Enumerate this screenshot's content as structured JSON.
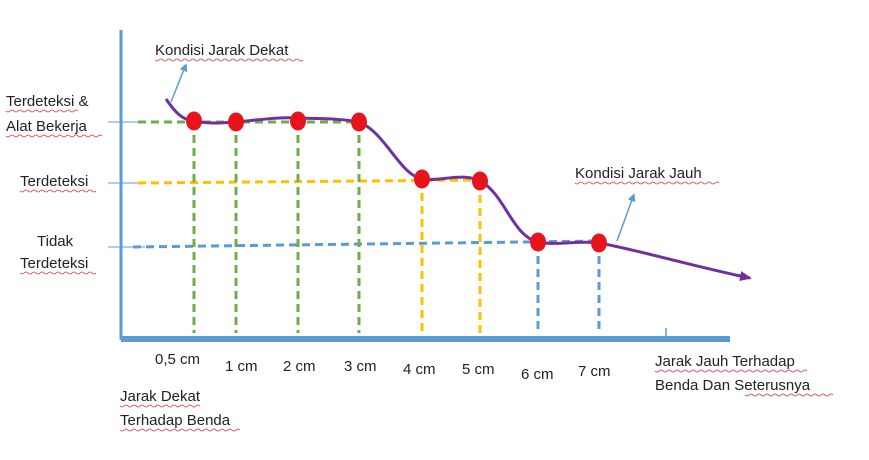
{
  "levels": {
    "terdeteksi_alat_bekerja": [
      "Terdeteksi &",
      "Alat Bekerja"
    ],
    "terdeteksi": "Terdeteksi",
    "tidak_terdeteksi": [
      "Tidak",
      "Terdeteksi"
    ]
  },
  "annotations": {
    "near": "Kondisi Jarak Dekat",
    "far": "Kondisi Jarak Jauh"
  },
  "x_ticks": [
    "0,5 cm",
    "1 cm",
    "2 cm",
    "3 cm",
    "4 cm",
    "5 cm",
    "6 cm",
    "7 cm"
  ],
  "x_labels": {
    "near": [
      "Jarak Dekat",
      "Terhadap Benda"
    ],
    "far": [
      "Jarak Jauh Terhadap",
      "Benda Dan Seterusnya"
    ]
  },
  "colors": {
    "axis": "#5b9bd5",
    "curve": "#7030a0",
    "point": "#e8141c",
    "green_guide": "#70ad47",
    "yellow_guide": "#ffc000",
    "blue_guide": "#5b9bd5",
    "leader": "#5b9bd5"
  }
}
